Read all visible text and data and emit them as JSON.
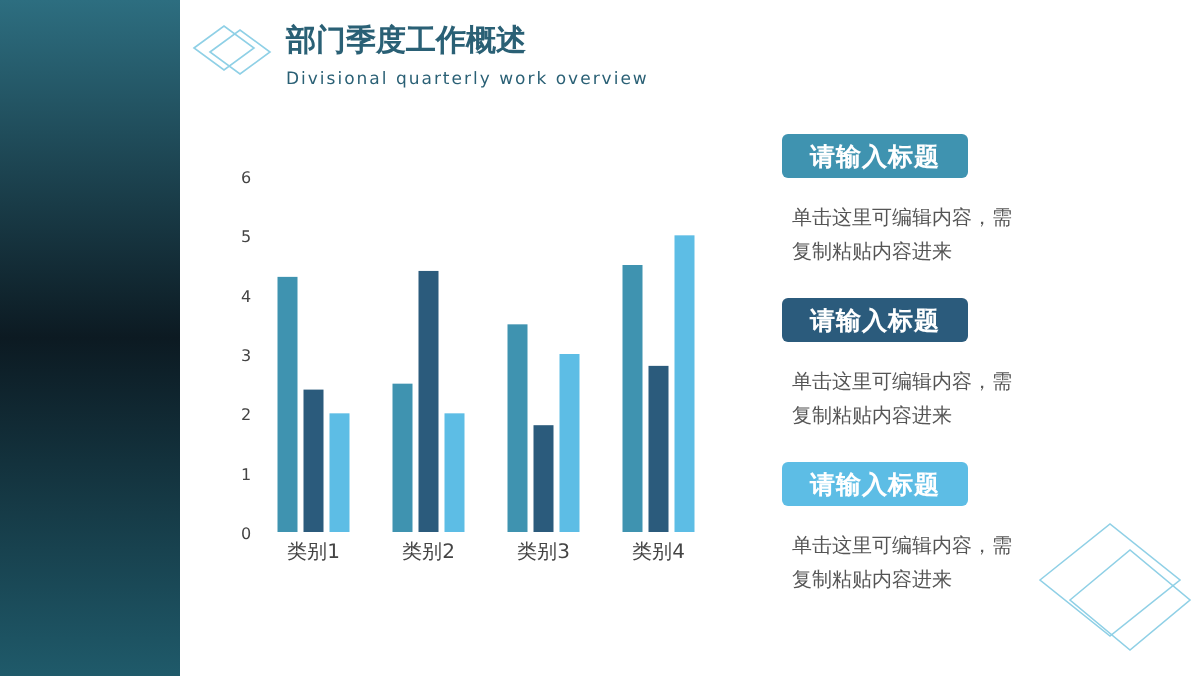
{
  "chart_data": {
    "type": "bar",
    "title": "部门季度工作概述",
    "subtitle": "Divisional quarterly work overview",
    "categories": [
      "类别1",
      "类别2",
      "类别3",
      "类别4"
    ],
    "series": [
      {
        "color": "#3f93b0",
        "values": [
          4.3,
          2.5,
          3.5,
          4.5
        ]
      },
      {
        "color": "#2b5b7c",
        "values": [
          2.4,
          4.4,
          1.8,
          2.8
        ]
      },
      {
        "color": "#5dbde5",
        "values": [
          2.0,
          2.0,
          3.0,
          5.0
        ]
      }
    ],
    "ylim": [
      0,
      6
    ],
    "yticks": [
      0,
      1,
      2,
      3,
      4,
      5,
      6
    ],
    "annotations": [
      "请输入标题",
      "单击这里可编辑内容，需复制粘贴内容进来",
      "请输入标题",
      "单击这里可编辑内容，需复制粘贴内容进来",
      "请输入标题",
      "单击这里可编辑内容，需复制粘贴内容进来"
    ]
  }
}
